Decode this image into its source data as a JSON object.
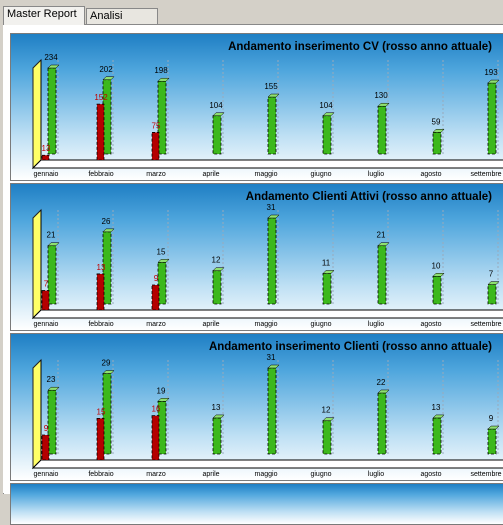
{
  "tabs": [
    {
      "label": "Master Report",
      "active": true
    },
    {
      "label": "Analisi Utenti",
      "active": false
    }
  ],
  "colors": {
    "current_year": "#b40000",
    "previous_year": "#3cb81c",
    "wall": "#ffff66"
  },
  "chart_data": [
    {
      "type": "bar",
      "title": "Andamento inserimento CV (rosso anno attuale)",
      "categories": [
        "gennaio",
        "febbraio",
        "marzo",
        "aprile",
        "maggio",
        "giugno",
        "luglio",
        "agosto",
        "settembre"
      ],
      "series": [
        {
          "values": [
            13,
            152,
            75,
            null,
            null,
            null,
            null,
            null,
            null
          ]
        },
        {
          "values": [
            234,
            202,
            198,
            104,
            155,
            104,
            130,
            59,
            193
          ]
        }
      ]
    },
    {
      "type": "bar",
      "title": "Andamento Clienti  Attivi (rosso anno attuale)",
      "categories": [
        "gennaio",
        "febbraio",
        "marzo",
        "aprile",
        "maggio",
        "giugno",
        "luglio",
        "agosto",
        "settembre"
      ],
      "series": [
        {
          "values": [
            7,
            13,
            9,
            null,
            null,
            null,
            null,
            null,
            null
          ]
        },
        {
          "values": [
            21,
            26,
            15,
            12,
            31,
            11,
            21,
            10,
            7
          ]
        }
      ]
    },
    {
      "type": "bar",
      "title": "Andamento inserimento Clienti  (rosso anno attuale)",
      "categories": [
        "gennaio",
        "febbraio",
        "marzo",
        "aprile",
        "maggio",
        "giugno",
        "luglio",
        "agosto",
        "settembre"
      ],
      "series": [
        {
          "values": [
            9,
            15,
            16,
            null,
            null,
            null,
            null,
            null,
            null
          ]
        },
        {
          "values": [
            23,
            29,
            19,
            13,
            31,
            12,
            22,
            13,
            9
          ]
        }
      ]
    }
  ]
}
